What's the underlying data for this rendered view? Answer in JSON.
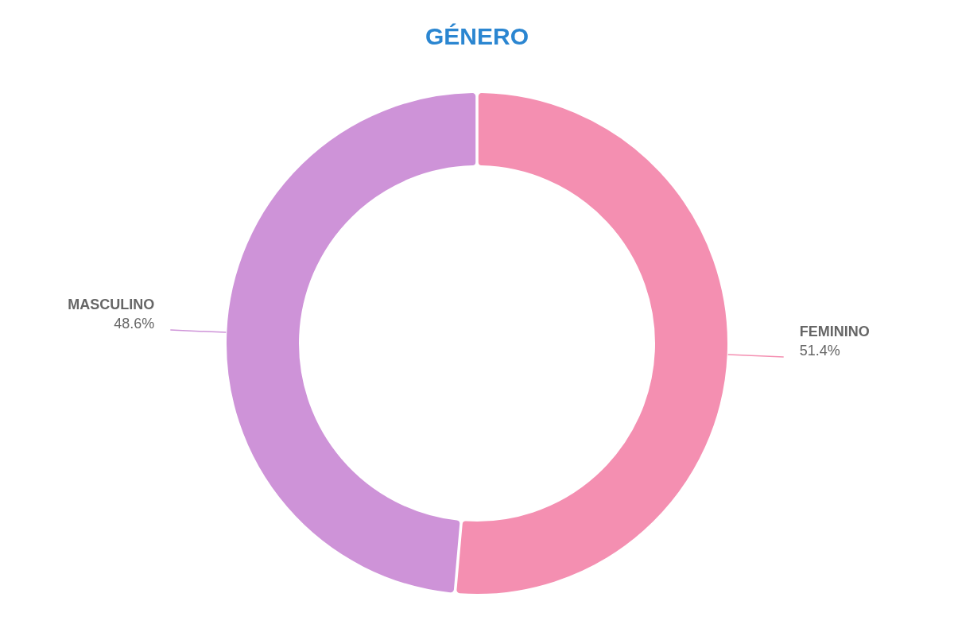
{
  "chart_data": {
    "type": "donut",
    "title": "GÉNERO",
    "categories": [
      "FEMININO",
      "MASCULINO"
    ],
    "values": [
      51.4,
      48.6
    ],
    "value_labels": [
      "51.4%",
      "48.6%"
    ],
    "colors": [
      "#f48fb1",
      "#ce93d8"
    ],
    "legend": false
  }
}
